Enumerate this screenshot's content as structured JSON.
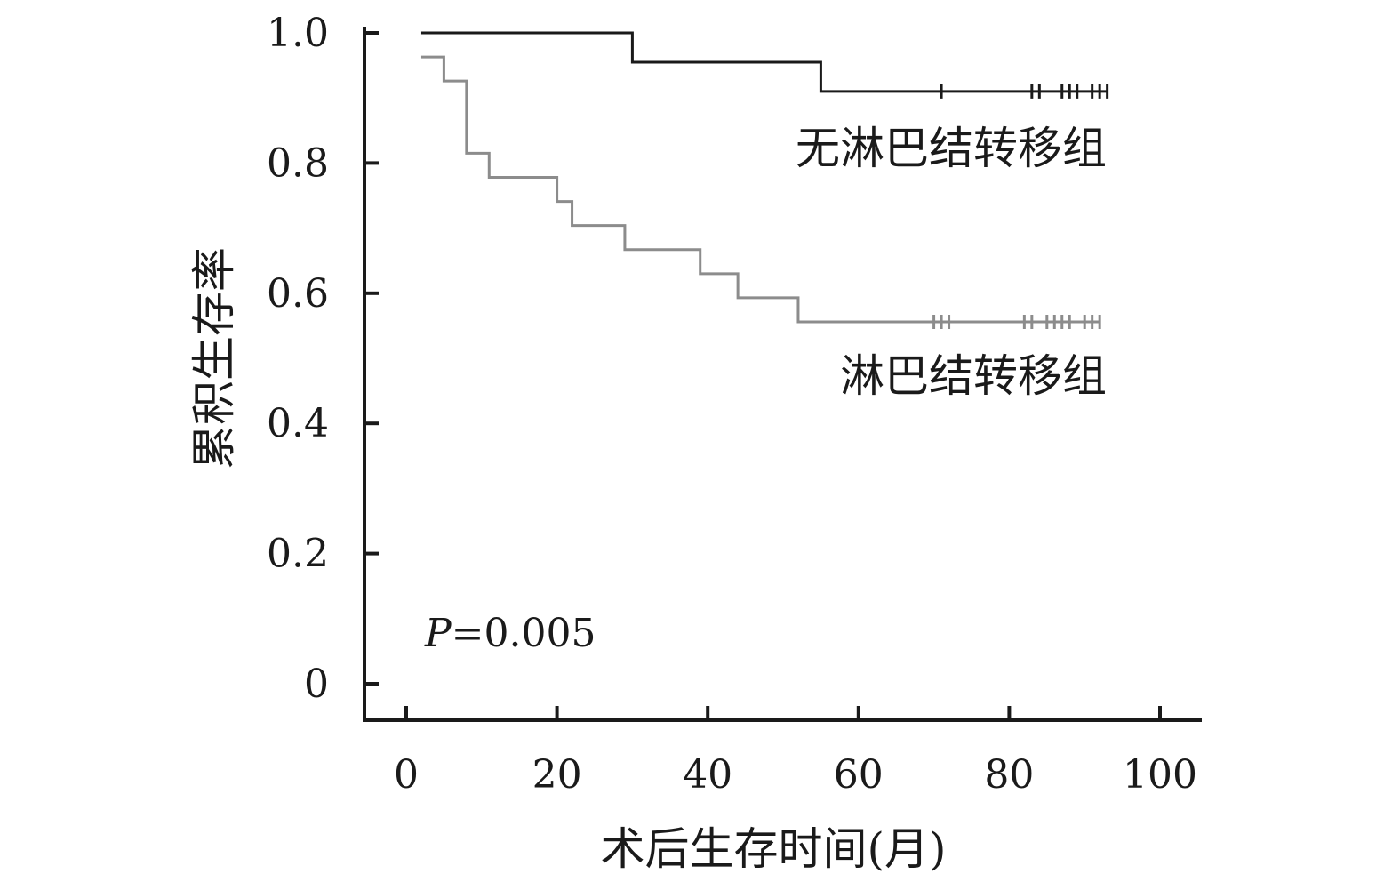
{
  "chart_data": {
    "type": "line",
    "subtype": "kaplan-meier",
    "xlabel": "术后生存时间(月)",
    "ylabel": "累积生存率",
    "xlim": [
      0,
      100
    ],
    "ylim": [
      0,
      1.0
    ],
    "x_ticks": [
      "0",
      "20",
      "40",
      "60",
      "80",
      "100"
    ],
    "y_ticks": [
      "0",
      "0.2",
      "0.4",
      "0.6",
      "0.8",
      "1.0"
    ],
    "grid": false,
    "annotation": {
      "label": "P",
      "value": "=0.005"
    },
    "series": [
      {
        "name": "无淋巴结转移组",
        "color": "#1a1a1a",
        "steps": [
          [
            2,
            1.0
          ],
          [
            30,
            0.955
          ],
          [
            55,
            0.91
          ],
          [
            93,
            0.91
          ]
        ],
        "censored": [
          71,
          83,
          84,
          87,
          88,
          89,
          91,
          92,
          93
        ]
      },
      {
        "name": "淋巴结转移组",
        "color": "#8c8c8c",
        "steps": [
          [
            2,
            0.963
          ],
          [
            5,
            0.926
          ],
          [
            8,
            0.815
          ],
          [
            11,
            0.778
          ],
          [
            20,
            0.741
          ],
          [
            22,
            0.704
          ],
          [
            29,
            0.667
          ],
          [
            39,
            0.63
          ],
          [
            44,
            0.593
          ],
          [
            52,
            0.556
          ],
          [
            92,
            0.556
          ]
        ],
        "censored": [
          70,
          71,
          72,
          82,
          83,
          85,
          86,
          87,
          88,
          90,
          91,
          92
        ]
      }
    ]
  }
}
